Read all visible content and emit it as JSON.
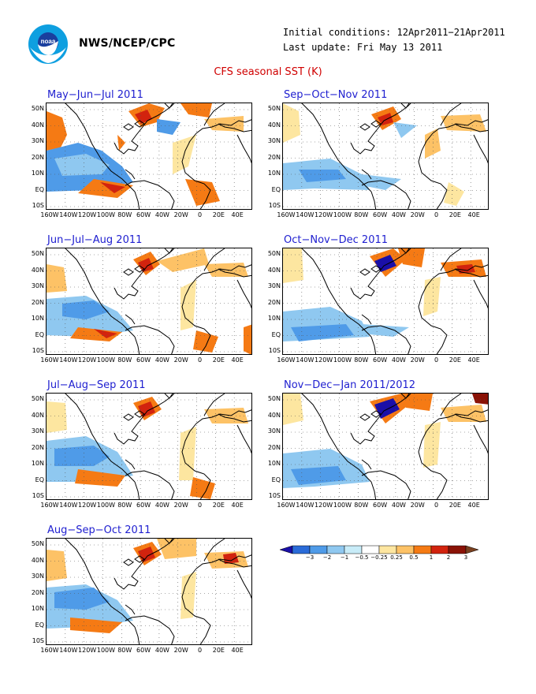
{
  "header": {
    "organization": "NWS/NCEP/CPC",
    "logo_text": "noaa",
    "initial_conditions": "Initial conditions: 12Apr2011−21Apr2011",
    "last_update": "Last update: Fri May 13 2011",
    "title": "CFS seasonal SST (K)"
  },
  "colors": {
    "title": "#d00000",
    "panel_title": "#2020d0",
    "land_outline": "#000000"
  },
  "lat_labels": [
    "50N",
    "40N",
    "30N",
    "20N",
    "10N",
    "EQ",
    "10S"
  ],
  "lon_labels": [
    "160W",
    "140W",
    "120W",
    "100W",
    "80W",
    "60W",
    "40W",
    "20W",
    "0",
    "20E",
    "40E"
  ],
  "panels": [
    {
      "id": "mjj",
      "title": "May−Jun−Jul 2011"
    },
    {
      "id": "son",
      "title": "Sep−Oct−Nov 2011"
    },
    {
      "id": "jja",
      "title": "Jun−Jul−Aug 2011"
    },
    {
      "id": "ond",
      "title": "Oct−Nov−Dec 2011"
    },
    {
      "id": "jas",
      "title": "Jul−Aug−Sep 2011"
    },
    {
      "id": "ndj",
      "title": "Nov−Dec−Jan 2011/2012"
    },
    {
      "id": "aso",
      "title": "Aug−Sep−Oct 2011"
    }
  ],
  "legend": {
    "labels": [
      "−3",
      "−2",
      "−1",
      "−0.5",
      "−0.25",
      "0.25",
      "0.5",
      "1",
      "2",
      "3"
    ],
    "colors": [
      "#1a0fa8",
      "#2a6bd8",
      "#4f9be8",
      "#8fc8f0",
      "#c8ecf8",
      "#ffffff",
      "#fde6a0",
      "#fdc266",
      "#f57a14",
      "#d2230e",
      "#8a1206",
      "#7a4020"
    ]
  }
}
